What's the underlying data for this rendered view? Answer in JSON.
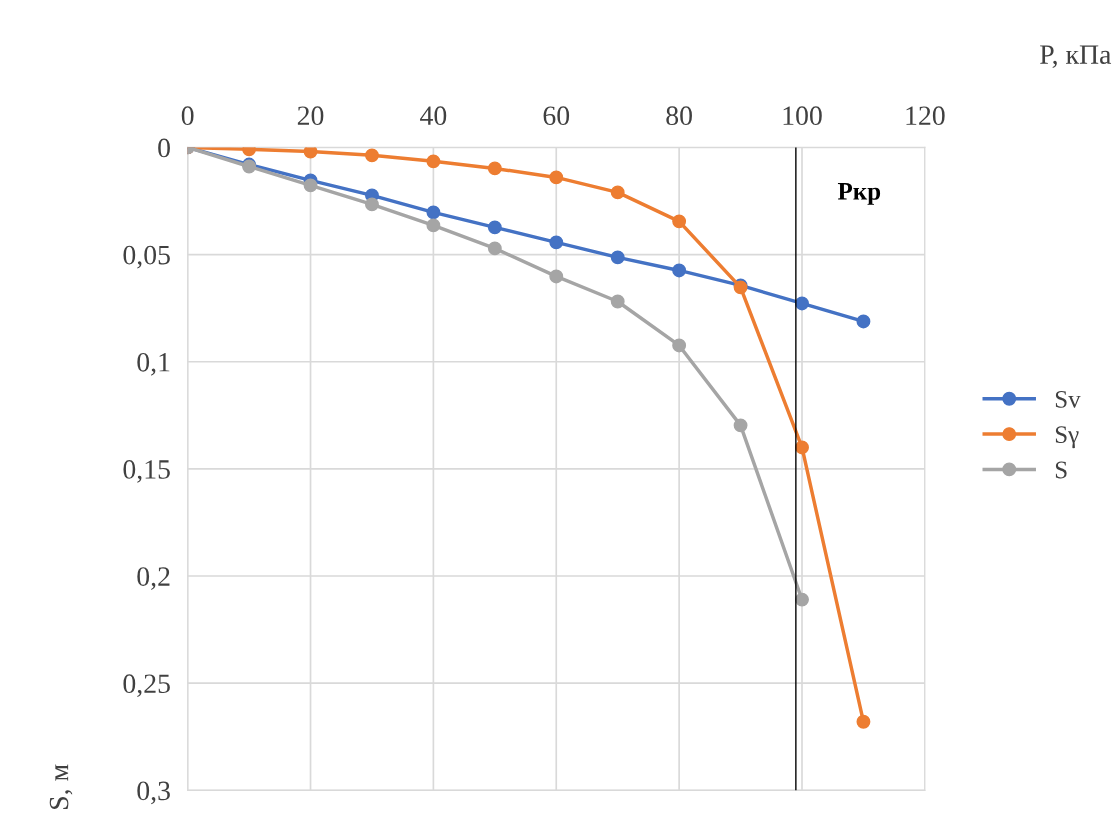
{
  "chart_data": {
    "type": "line",
    "xlabel": "P, кПа",
    "ylabel": "S, м",
    "x": [
      0,
      10,
      20,
      30,
      40,
      50,
      60,
      70,
      80,
      90,
      100,
      110
    ],
    "series": [
      {
        "name": "Sv",
        "color": "#4472c4",
        "values": [
          0,
          0.008,
          0.0154,
          0.0224,
          0.0303,
          0.0373,
          0.0443,
          0.0513,
          0.0574,
          0.0644,
          0.0728,
          0.0812
        ]
      },
      {
        "name": "Sγ",
        "color": "#ed7d31",
        "values": [
          0,
          0.0009,
          0.0019,
          0.0037,
          0.0065,
          0.0098,
          0.014,
          0.021,
          0.0345,
          0.0653,
          0.14,
          0.268
        ]
      },
      {
        "name": "S",
        "color": "#a5a5a5",
        "values": [
          0,
          0.0089,
          0.0177,
          0.0266,
          0.0364,
          0.0471,
          0.0602,
          0.0719,
          0.0924,
          0.1297,
          0.211,
          null
        ]
      }
    ],
    "xlim": [
      0,
      120
    ],
    "xticks": [
      0,
      20,
      40,
      60,
      80,
      100,
      120
    ],
    "ylim": [
      0.3,
      0
    ],
    "yticks": [
      {
        "value": 0,
        "label": "0"
      },
      {
        "value": 0.05,
        "label": "0,05"
      },
      {
        "value": 0.1,
        "label": "0,1"
      },
      {
        "value": 0.15,
        "label": "0,15"
      },
      {
        "value": 0.2,
        "label": "0,2"
      },
      {
        "value": 0.25,
        "label": "0,25"
      },
      {
        "value": 0.3,
        "label": "0,3"
      }
    ],
    "ref_lines": [
      {
        "axis": "x",
        "value": 99,
        "label": "Ркр",
        "color": "#000000"
      }
    ],
    "grid": true,
    "legend": "right",
    "marker": "circle",
    "line_style": "solid"
  }
}
